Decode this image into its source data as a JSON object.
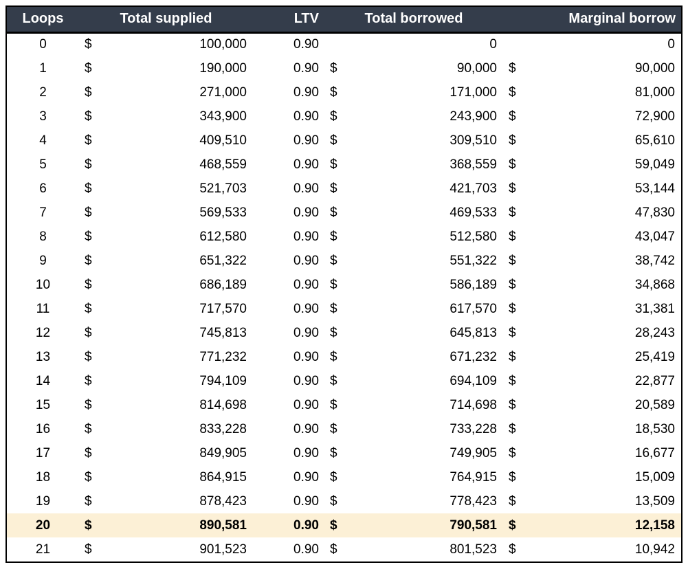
{
  "colors": {
    "header_bg": "#343D4B",
    "header_text": "#FFFFFF",
    "highlight_bg": "#FCF0D6",
    "border": "#000000",
    "text": "#000000"
  },
  "table": {
    "columns": [
      {
        "key": "loops",
        "label": "Loops",
        "align": "center"
      },
      {
        "key": "supplied",
        "label": "Total supplied",
        "align": "center"
      },
      {
        "key": "ltv",
        "label": "LTV",
        "align": "right"
      },
      {
        "key": "borrowed",
        "label": "Total borrowed",
        "align": "center"
      },
      {
        "key": "marginal",
        "label": "Marginal borrow",
        "align": "right"
      }
    ],
    "rows": [
      {
        "loops": "0",
        "supplied_cur": "$",
        "supplied": "100,000",
        "ltv": "0.90",
        "borrowed_cur": "",
        "borrowed": "0",
        "marginal_cur": "",
        "marginal": "0",
        "highlight": false
      },
      {
        "loops": "1",
        "supplied_cur": "$",
        "supplied": "190,000",
        "ltv": "0.90",
        "borrowed_cur": "$",
        "borrowed": "90,000",
        "marginal_cur": "$",
        "marginal": "90,000",
        "highlight": false
      },
      {
        "loops": "2",
        "supplied_cur": "$",
        "supplied": "271,000",
        "ltv": "0.90",
        "borrowed_cur": "$",
        "borrowed": "171,000",
        "marginal_cur": "$",
        "marginal": "81,000",
        "highlight": false
      },
      {
        "loops": "3",
        "supplied_cur": "$",
        "supplied": "343,900",
        "ltv": "0.90",
        "borrowed_cur": "$",
        "borrowed": "243,900",
        "marginal_cur": "$",
        "marginal": "72,900",
        "highlight": false
      },
      {
        "loops": "4",
        "supplied_cur": "$",
        "supplied": "409,510",
        "ltv": "0.90",
        "borrowed_cur": "$",
        "borrowed": "309,510",
        "marginal_cur": "$",
        "marginal": "65,610",
        "highlight": false
      },
      {
        "loops": "5",
        "supplied_cur": "$",
        "supplied": "468,559",
        "ltv": "0.90",
        "borrowed_cur": "$",
        "borrowed": "368,559",
        "marginal_cur": "$",
        "marginal": "59,049",
        "highlight": false
      },
      {
        "loops": "6",
        "supplied_cur": "$",
        "supplied": "521,703",
        "ltv": "0.90",
        "borrowed_cur": "$",
        "borrowed": "421,703",
        "marginal_cur": "$",
        "marginal": "53,144",
        "highlight": false
      },
      {
        "loops": "7",
        "supplied_cur": "$",
        "supplied": "569,533",
        "ltv": "0.90",
        "borrowed_cur": "$",
        "borrowed": "469,533",
        "marginal_cur": "$",
        "marginal": "47,830",
        "highlight": false
      },
      {
        "loops": "8",
        "supplied_cur": "$",
        "supplied": "612,580",
        "ltv": "0.90",
        "borrowed_cur": "$",
        "borrowed": "512,580",
        "marginal_cur": "$",
        "marginal": "43,047",
        "highlight": false
      },
      {
        "loops": "9",
        "supplied_cur": "$",
        "supplied": "651,322",
        "ltv": "0.90",
        "borrowed_cur": "$",
        "borrowed": "551,322",
        "marginal_cur": "$",
        "marginal": "38,742",
        "highlight": false
      },
      {
        "loops": "10",
        "supplied_cur": "$",
        "supplied": "686,189",
        "ltv": "0.90",
        "borrowed_cur": "$",
        "borrowed": "586,189",
        "marginal_cur": "$",
        "marginal": "34,868",
        "highlight": false
      },
      {
        "loops": "11",
        "supplied_cur": "$",
        "supplied": "717,570",
        "ltv": "0.90",
        "borrowed_cur": "$",
        "borrowed": "617,570",
        "marginal_cur": "$",
        "marginal": "31,381",
        "highlight": false
      },
      {
        "loops": "12",
        "supplied_cur": "$",
        "supplied": "745,813",
        "ltv": "0.90",
        "borrowed_cur": "$",
        "borrowed": "645,813",
        "marginal_cur": "$",
        "marginal": "28,243",
        "highlight": false
      },
      {
        "loops": "13",
        "supplied_cur": "$",
        "supplied": "771,232",
        "ltv": "0.90",
        "borrowed_cur": "$",
        "borrowed": "671,232",
        "marginal_cur": "$",
        "marginal": "25,419",
        "highlight": false
      },
      {
        "loops": "14",
        "supplied_cur": "$",
        "supplied": "794,109",
        "ltv": "0.90",
        "borrowed_cur": "$",
        "borrowed": "694,109",
        "marginal_cur": "$",
        "marginal": "22,877",
        "highlight": false
      },
      {
        "loops": "15",
        "supplied_cur": "$",
        "supplied": "814,698",
        "ltv": "0.90",
        "borrowed_cur": "$",
        "borrowed": "714,698",
        "marginal_cur": "$",
        "marginal": "20,589",
        "highlight": false
      },
      {
        "loops": "16",
        "supplied_cur": "$",
        "supplied": "833,228",
        "ltv": "0.90",
        "borrowed_cur": "$",
        "borrowed": "733,228",
        "marginal_cur": "$",
        "marginal": "18,530",
        "highlight": false
      },
      {
        "loops": "17",
        "supplied_cur": "$",
        "supplied": "849,905",
        "ltv": "0.90",
        "borrowed_cur": "$",
        "borrowed": "749,905",
        "marginal_cur": "$",
        "marginal": "16,677",
        "highlight": false
      },
      {
        "loops": "18",
        "supplied_cur": "$",
        "supplied": "864,915",
        "ltv": "0.90",
        "borrowed_cur": "$",
        "borrowed": "764,915",
        "marginal_cur": "$",
        "marginal": "15,009",
        "highlight": false
      },
      {
        "loops": "19",
        "supplied_cur": "$",
        "supplied": "878,423",
        "ltv": "0.90",
        "borrowed_cur": "$",
        "borrowed": "778,423",
        "marginal_cur": "$",
        "marginal": "13,509",
        "highlight": false
      },
      {
        "loops": "20",
        "supplied_cur": "$",
        "supplied": "890,581",
        "ltv": "0.90",
        "borrowed_cur": "$",
        "borrowed": "790,581",
        "marginal_cur": "$",
        "marginal": "12,158",
        "highlight": true
      },
      {
        "loops": "21",
        "supplied_cur": "$",
        "supplied": "901,523",
        "ltv": "0.90",
        "borrowed_cur": "$",
        "borrowed": "801,523",
        "marginal_cur": "$",
        "marginal": "10,942",
        "highlight": false
      }
    ],
    "highlighted_row_loops": "20"
  }
}
